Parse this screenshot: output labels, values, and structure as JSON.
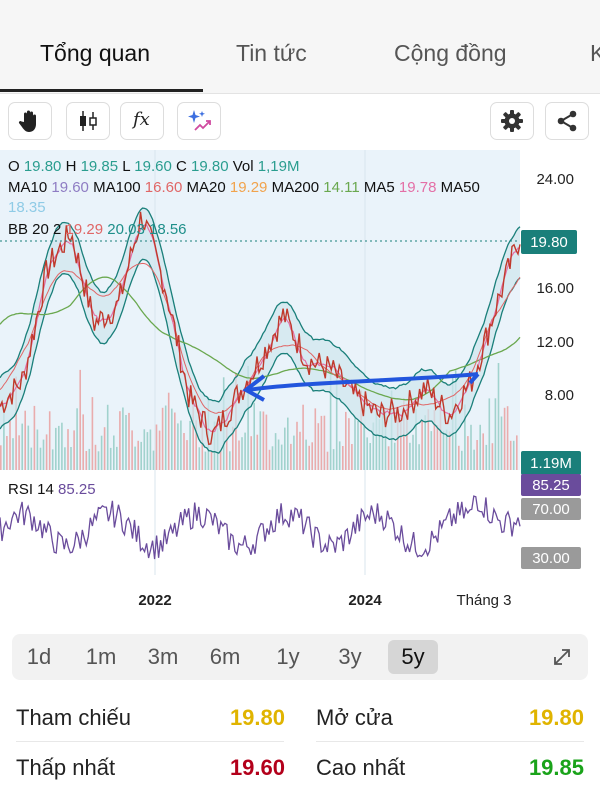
{
  "tabs": [
    {
      "label": "Tổng quan",
      "active": true
    },
    {
      "label": "Tin tức",
      "active": false
    },
    {
      "label": "Cộng đồng",
      "active": false
    },
    {
      "label": "K",
      "active": false
    }
  ],
  "toolbar": {
    "icons": [
      "hand-icon",
      "candlestick-icon",
      "function-icon",
      "ai-sparkle-icon",
      "gear-icon",
      "share-icon"
    ],
    "function_glyph": "fx"
  },
  "indicators": {
    "ohlc": [
      {
        "label": "O",
        "value": "19.80"
      },
      {
        "label": "H",
        "value": "19.85"
      },
      {
        "label": "L",
        "value": "19.60"
      },
      {
        "label": "C",
        "value": "19.80"
      },
      {
        "label": "Vol",
        "value": "1,19M"
      }
    ],
    "ma": [
      {
        "label": "MA10",
        "value": "19.60",
        "color": "#8e7cc3"
      },
      {
        "label": "MA100",
        "value": "16.60",
        "color": "#e06666"
      },
      {
        "label": "MA20",
        "value": "19.29",
        "color": "#f1a34c"
      },
      {
        "label": "MA200",
        "value": "14.11",
        "color": "#6aa84f"
      },
      {
        "label": "MA5",
        "value": "19.78",
        "color": "#e46fa6"
      },
      {
        "label": "MA50",
        "value": "18.35",
        "color": "#8fcbe6"
      }
    ],
    "bb": {
      "label": "BB 20 2",
      "values": [
        "19.29",
        "20.03",
        "18.56"
      ],
      "colors": [
        "#e06666",
        "#1f8f8a",
        "#1f8f8a"
      ]
    },
    "value_color": "#2a9d8f"
  },
  "chart_data": {
    "type": "line",
    "price_axis_ticks": [
      "24.00",
      "16.00",
      "12.00",
      "8.00"
    ],
    "last_price": "19.80",
    "last_volume": "1.19M",
    "rsi": {
      "label": "RSI 14",
      "value": "85.25",
      "levels": [
        "70.00",
        "30.00"
      ]
    },
    "x_tick_labels": [
      "2022",
      "2024",
      "Tháng 3"
    ],
    "series": [
      {
        "values": [
          10.5,
          12,
          18,
          20,
          15,
          16,
          21,
          17,
          11,
          8.8,
          11,
          13,
          15.5,
          13,
          12.5,
          11,
          10,
          10.2,
          11.5,
          10,
          12,
          16,
          19.8
        ]
      }
    ],
    "ylim": [
      7,
      24.5
    ],
    "colors": {
      "price": "#c0392b",
      "band": "#1a7f7a",
      "ma200": "#6aa84f",
      "rsi": "#6a4c9c",
      "annotation": "#2255dd"
    }
  },
  "range": {
    "options": [
      "1d",
      "1m",
      "3m",
      "6m",
      "1y",
      "3y",
      "5y"
    ],
    "selected": "5y"
  },
  "stats": [
    {
      "label": "Tham chiếu",
      "value": "19.80",
      "color": "#e0b400"
    },
    {
      "label": "Mở cửa",
      "value": "19.80",
      "color": "#e0b400"
    },
    {
      "label": "Thấp nhất",
      "value": "19.60",
      "color": "#b3001b"
    },
    {
      "label": "Cao nhất",
      "value": "19.85",
      "color": "#1aa31a"
    }
  ]
}
